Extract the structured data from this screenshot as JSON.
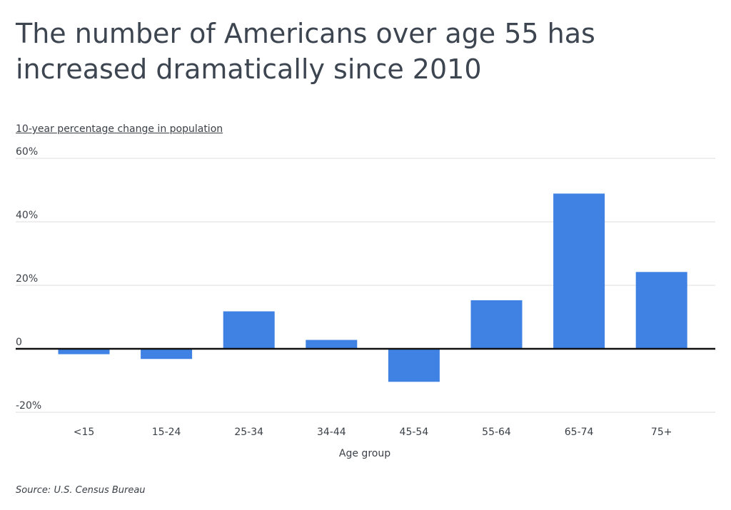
{
  "title": "The number of Americans over age 55 has increased dramatically since 2010",
  "subtitle": "10-year percentage change in population",
  "source": "Source:  U.S. Census Bureau",
  "colors": {
    "bar": "#3f82e3",
    "grid": "#dddddd",
    "zero_line": "#111111",
    "text": "#3b4148"
  },
  "chart_data": {
    "type": "bar",
    "title": "The number of Americans over age 55 has increased dramatically since 2010",
    "xlabel": "Age group",
    "ylabel": "10-year percentage change in population",
    "categories": [
      "<15",
      "15-24",
      "25-34",
      "34-44",
      "45-54",
      "55-64",
      "65-74",
      "75+"
    ],
    "values": [
      -1.7,
      -3.2,
      11.8,
      2.8,
      -10.4,
      15.3,
      48.9,
      24.2
    ],
    "ylim": [
      -20,
      60
    ],
    "yticks": [
      -20,
      0,
      20,
      40,
      60
    ],
    "ytick_labels": [
      "-20%",
      "0",
      "20%",
      "40%",
      "60%"
    ],
    "grid": true,
    "legend": "none"
  }
}
